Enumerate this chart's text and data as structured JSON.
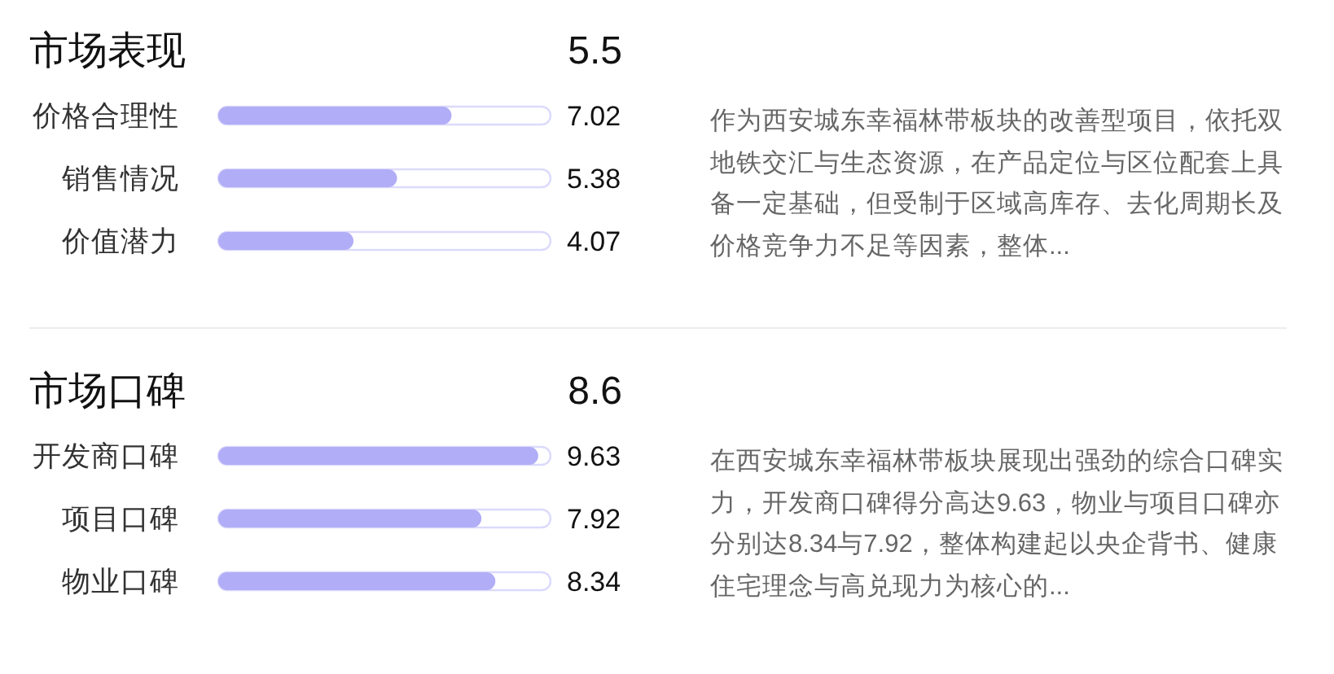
{
  "chart_data": [
    {
      "type": "bar",
      "orientation": "horizontal",
      "title": "市场表现",
      "subtitle": "5.5",
      "categories": [
        "价格合理性",
        "销售情况",
        "价值潜力"
      ],
      "values": [
        7.02,
        5.38,
        4.07
      ],
      "color": "#b1adf6",
      "xlim": [
        0,
        10
      ],
      "tick_labels": "y",
      "data_labels": true,
      "annotations": [
        "作为西安城东幸福林带板块的改善型项目，依托双地铁交汇与生态资源，在产品定位与区位配套上具备一定基础，但受制于区域高库存、去化周期长及价格竞争力不足等因素，整体..."
      ]
    },
    {
      "type": "bar",
      "orientation": "horizontal",
      "title": "市场口碑",
      "subtitle": "8.6",
      "categories": [
        "开发商口碑",
        "项目口碑",
        "物业口碑"
      ],
      "values": [
        9.63,
        7.92,
        8.34
      ],
      "color": "#b1adf6",
      "xlim": [
        0,
        10
      ],
      "tick_labels": "y",
      "data_labels": true,
      "annotations": [
        "在西安城东幸福林带板块展现出强劲的综合口碑实力，开发商口碑得分高达9.63，物业与项目口碑亦分别达8.34与7.92，整体构建起以央企背书、健康住宅理念与高兑现力为核心的..."
      ]
    }
  ]
}
